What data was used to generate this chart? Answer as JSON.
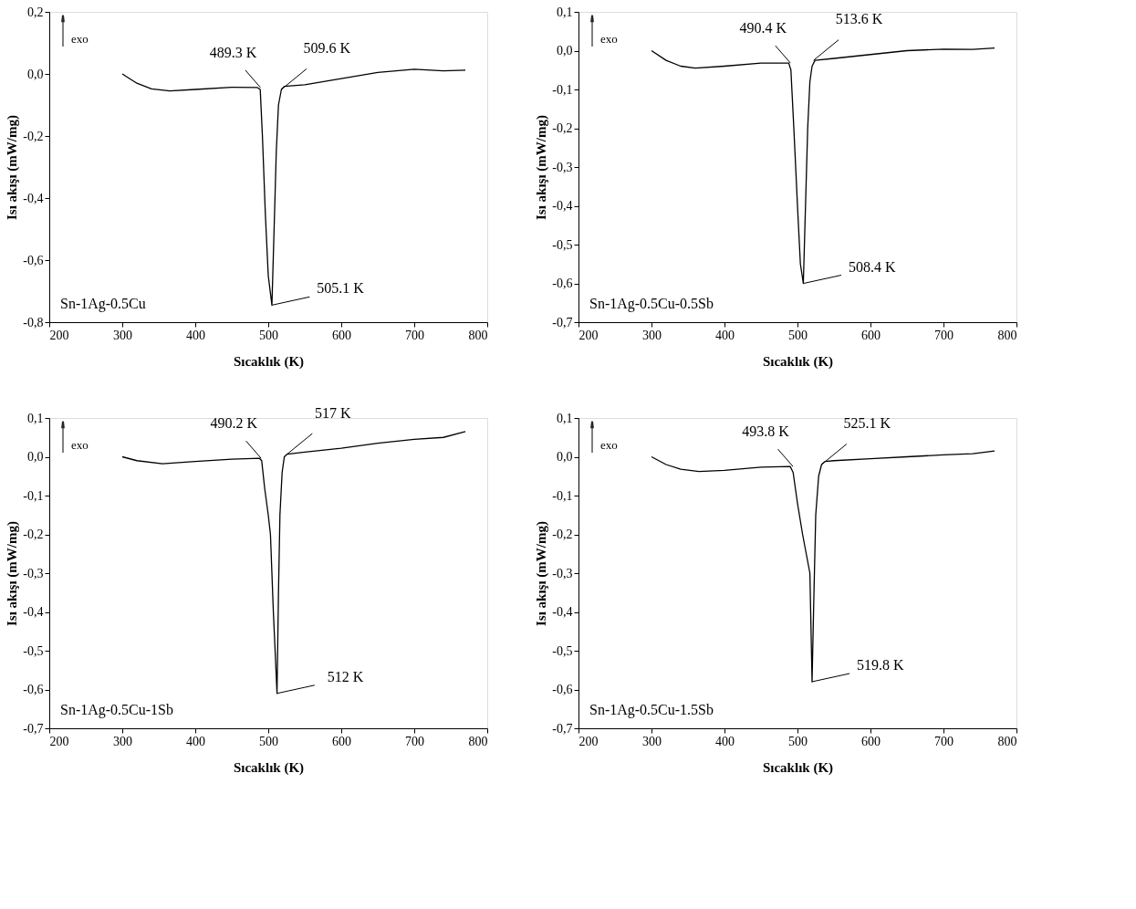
{
  "chart_data": [
    {
      "type": "line",
      "xlabel": "Sıcaklık (K)",
      "ylabel": "Isı akışı (mW/mg)",
      "xlim": [
        200,
        800
      ],
      "xticks": [
        200,
        300,
        400,
        500,
        600,
        700,
        800
      ],
      "ylim": [
        -0.8,
        0.2
      ],
      "yticks": [
        {
          "value": -0.8,
          "label": "-0,8"
        },
        {
          "value": -0.6,
          "label": "-0,6"
        },
        {
          "value": -0.4,
          "label": "-0,4"
        },
        {
          "value": -0.2,
          "label": "-0,2"
        },
        {
          "value": 0.0,
          "label": "0,0"
        },
        {
          "value": 0.2,
          "label": "0,2"
        }
      ],
      "grid": false,
      "series": [
        {
          "color": "#000000",
          "x": [
            300,
            320,
            340,
            365,
            400,
            450,
            485,
            489,
            492,
            496,
            500,
            505,
            508,
            511,
            514,
            518,
            522,
            550,
            600,
            650,
            700,
            740,
            770
          ],
          "values": [
            0.0,
            -0.03,
            -0.048,
            -0.055,
            -0.05,
            -0.043,
            -0.044,
            -0.05,
            -0.2,
            -0.45,
            -0.65,
            -0.745,
            -0.5,
            -0.25,
            -0.1,
            -0.05,
            -0.04,
            -0.035,
            -0.015,
            0.005,
            0.015,
            0.01,
            0.012
          ]
        }
      ],
      "annotations": [
        "exo",
        "Sn-1Ag-0.5Cu",
        {
          "text": "489.3 K",
          "x": 489.3,
          "y": -0.044
        },
        {
          "text": "509.6 K",
          "x": 518,
          "y": -0.05
        },
        {
          "text": "505.1 K",
          "x": 505.1,
          "y": -0.745
        }
      ]
    },
    {
      "type": "line",
      "xlabel": "Sıcaklık (K)",
      "ylabel": "Isı akışı (mW/mg)",
      "xlim": [
        200,
        800
      ],
      "xticks": [
        200,
        300,
        400,
        500,
        600,
        700,
        800
      ],
      "ylim": [
        -0.7,
        0.1
      ],
      "yticks": [
        {
          "value": -0.7,
          "label": "-0,7"
        },
        {
          "value": -0.6,
          "label": "-0,6"
        },
        {
          "value": -0.5,
          "label": "-0,5"
        },
        {
          "value": -0.4,
          "label": "-0,4"
        },
        {
          "value": -0.3,
          "label": "-0,3"
        },
        {
          "value": -0.2,
          "label": "-0,2"
        },
        {
          "value": -0.1,
          "label": "-0,1"
        },
        {
          "value": 0.0,
          "label": "0,0"
        },
        {
          "value": 0.1,
          "label": "0,1"
        }
      ],
      "grid": false,
      "series": [
        {
          "color": "#000000",
          "x": [
            300,
            320,
            340,
            360,
            400,
            450,
            488,
            491,
            495,
            500,
            504,
            508,
            511,
            514,
            517,
            520,
            524,
            550,
            600,
            650,
            700,
            740,
            770
          ],
          "values": [
            0.0,
            -0.025,
            -0.04,
            -0.045,
            -0.04,
            -0.032,
            -0.032,
            -0.05,
            -0.2,
            -0.4,
            -0.55,
            -0.6,
            -0.4,
            -0.2,
            -0.08,
            -0.04,
            -0.025,
            -0.02,
            -0.01,
            0.0,
            0.004,
            0.003,
            0.007
          ]
        }
      ],
      "annotations": [
        "exo",
        "Sn-1Ag-0.5Cu-0.5Sb",
        {
          "text": "490.4 K",
          "x": 490.4,
          "y": -0.032
        },
        {
          "text": "513.6 K",
          "x": 522,
          "y": -0.025
        },
        {
          "text": "508.4 K",
          "x": 508.4,
          "y": -0.6
        }
      ]
    },
    {
      "type": "line",
      "xlabel": "Sıcaklık (K)",
      "ylabel": "Isı akışı (mW/mg)",
      "xlim": [
        200,
        800
      ],
      "xticks": [
        200,
        300,
        400,
        500,
        600,
        700,
        800
      ],
      "ylim": [
        -0.7,
        0.1
      ],
      "yticks": [
        {
          "value": -0.7,
          "label": "-0,7"
        },
        {
          "value": -0.6,
          "label": "-0,6"
        },
        {
          "value": -0.5,
          "label": "-0,5"
        },
        {
          "value": -0.4,
          "label": "-0,4"
        },
        {
          "value": -0.3,
          "label": "-0,3"
        },
        {
          "value": -0.2,
          "label": "-0,2"
        },
        {
          "value": -0.1,
          "label": "-0,1"
        },
        {
          "value": 0.0,
          "label": "0,0"
        },
        {
          "value": 0.1,
          "label": "0,1"
        }
      ],
      "grid": false,
      "series": [
        {
          "color": "#000000",
          "x": [
            300,
            320,
            355,
            400,
            450,
            488,
            491,
            495,
            500,
            503,
            507,
            512,
            514,
            516,
            519,
            522,
            526,
            550,
            600,
            650,
            700,
            740,
            770
          ],
          "values": [
            0.0,
            -0.01,
            -0.018,
            -0.012,
            -0.006,
            -0.004,
            -0.01,
            -0.08,
            -0.15,
            -0.2,
            -0.4,
            -0.61,
            -0.35,
            -0.15,
            -0.04,
            0.0,
            0.007,
            0.012,
            0.022,
            0.035,
            0.045,
            0.05,
            0.065
          ]
        }
      ],
      "annotations": [
        "exo",
        "Sn-1Ag-0.5Cu-1Sb",
        {
          "text": "490.2 K",
          "x": 490.2,
          "y": -0.004
        },
        {
          "text": "517 K",
          "x": 526,
          "y": 0.007
        },
        {
          "text": "512 K",
          "x": 512,
          "y": -0.61
        }
      ]
    },
    {
      "type": "line",
      "xlabel": "Sıcaklık (K)",
      "ylabel": "Isı akışı (mW/mg)",
      "xlim": [
        200,
        800
      ],
      "xticks": [
        200,
        300,
        400,
        500,
        600,
        700,
        800
      ],
      "ylim": [
        -0.7,
        0.1
      ],
      "yticks": [
        {
          "value": -0.7,
          "label": "-0,7"
        },
        {
          "value": -0.6,
          "label": "-0,6"
        },
        {
          "value": -0.5,
          "label": "-0,5"
        },
        {
          "value": -0.4,
          "label": "-0,4"
        },
        {
          "value": -0.3,
          "label": "-0,3"
        },
        {
          "value": -0.2,
          "label": "-0,2"
        },
        {
          "value": -0.1,
          "label": "-0,1"
        },
        {
          "value": 0.0,
          "label": "0,0"
        },
        {
          "value": 0.1,
          "label": "0,1"
        }
      ],
      "grid": false,
      "series": [
        {
          "color": "#000000",
          "x": [
            300,
            320,
            340,
            365,
            400,
            450,
            490,
            494,
            500,
            507,
            513,
            517,
            520,
            522,
            525,
            529,
            533,
            538,
            550,
            600,
            650,
            700,
            740,
            770
          ],
          "values": [
            0.0,
            -0.02,
            -0.032,
            -0.038,
            -0.035,
            -0.027,
            -0.025,
            -0.04,
            -0.12,
            -0.2,
            -0.26,
            -0.3,
            -0.58,
            -0.4,
            -0.15,
            -0.05,
            -0.02,
            -0.012,
            -0.01,
            -0.005,
            0.0,
            0.005,
            0.008,
            0.015
          ]
        }
      ],
      "annotations": [
        "exo",
        "Sn-1Ag-0.5Cu-1.5Sb",
        {
          "text": "493.8 K",
          "x": 493.8,
          "y": -0.025
        },
        {
          "text": "525.1 K",
          "x": 533,
          "y": -0.02
        },
        {
          "text": "519.8 K",
          "x": 519.8,
          "y": -0.58
        }
      ]
    }
  ]
}
